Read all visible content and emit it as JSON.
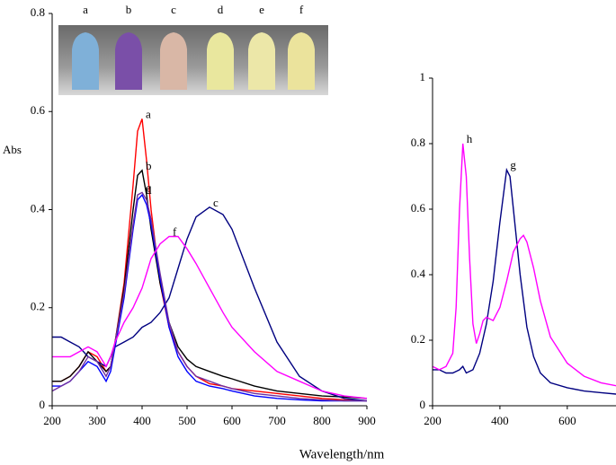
{
  "chart_data": [
    {
      "type": "line",
      "y_label": "Abs",
      "x_label": "Wavelength/nm",
      "xlim": [
        200,
        900
      ],
      "xticks": [
        200,
        300,
        400,
        500,
        600,
        700,
        800,
        900
      ],
      "ylim": [
        0,
        0.8
      ],
      "yticks": [
        0,
        0.2,
        0.4,
        0.6,
        0.8
      ],
      "x": [
        200,
        220,
        240,
        260,
        280,
        300,
        320,
        330,
        340,
        360,
        380,
        390,
        400,
        410,
        420,
        440,
        460,
        480,
        500,
        520,
        550,
        580,
        600,
        650,
        700,
        750,
        800,
        850,
        900
      ],
      "series": [
        {
          "name": "a",
          "color": "#ff0000",
          "values": [
            0.05,
            0.05,
            0.06,
            0.08,
            0.11,
            0.1,
            0.07,
            0.08,
            0.13,
            0.25,
            0.45,
            0.56,
            0.585,
            0.5,
            0.4,
            0.25,
            0.16,
            0.11,
            0.08,
            0.06,
            0.045,
            0.04,
            0.035,
            0.03,
            0.025,
            0.02,
            0.015,
            0.012,
            0.01
          ]
        },
        {
          "name": "b",
          "color": "#000000",
          "values": [
            0.05,
            0.05,
            0.06,
            0.08,
            0.11,
            0.09,
            0.07,
            0.08,
            0.13,
            0.24,
            0.4,
            0.47,
            0.48,
            0.43,
            0.36,
            0.25,
            0.17,
            0.12,
            0.095,
            0.08,
            0.07,
            0.06,
            0.055,
            0.04,
            0.03,
            0.025,
            0.02,
            0.018,
            0.015
          ]
        },
        {
          "name": "c",
          "color": "#000080",
          "values": [
            0.14,
            0.14,
            0.13,
            0.12,
            0.1,
            0.09,
            0.08,
            0.1,
            0.12,
            0.13,
            0.14,
            0.15,
            0.16,
            0.165,
            0.17,
            0.19,
            0.22,
            0.28,
            0.34,
            0.385,
            0.405,
            0.39,
            0.36,
            0.24,
            0.13,
            0.06,
            0.03,
            0.015,
            0.01
          ]
        },
        {
          "name": "d",
          "color": "#0000ff",
          "values": [
            0.04,
            0.04,
            0.05,
            0.07,
            0.09,
            0.08,
            0.05,
            0.07,
            0.12,
            0.22,
            0.36,
            0.42,
            0.43,
            0.41,
            0.37,
            0.26,
            0.16,
            0.1,
            0.07,
            0.05,
            0.04,
            0.035,
            0.03,
            0.02,
            0.015,
            0.012,
            0.01,
            0.01,
            0.01
          ]
        },
        {
          "name": "e",
          "color": "#7030a0",
          "values": [
            0.03,
            0.04,
            0.05,
            0.07,
            0.1,
            0.09,
            0.06,
            0.08,
            0.13,
            0.23,
            0.37,
            0.43,
            0.435,
            0.42,
            0.38,
            0.27,
            0.17,
            0.11,
            0.08,
            0.06,
            0.05,
            0.04,
            0.035,
            0.025,
            0.02,
            0.015,
            0.012,
            0.01,
            0.01
          ]
        },
        {
          "name": "f",
          "color": "#ff00ff",
          "values": [
            0.1,
            0.1,
            0.1,
            0.11,
            0.12,
            0.11,
            0.08,
            0.1,
            0.13,
            0.17,
            0.2,
            0.22,
            0.24,
            0.27,
            0.3,
            0.33,
            0.345,
            0.345,
            0.32,
            0.29,
            0.24,
            0.19,
            0.16,
            0.11,
            0.07,
            0.05,
            0.03,
            0.02,
            0.015
          ]
        }
      ]
    },
    {
      "type": "line",
      "xlim": [
        200,
        750
      ],
      "xticks": [
        200,
        400,
        600
      ],
      "ylim": [
        0,
        1
      ],
      "yticks": [
        0,
        0.2,
        0.4,
        0.6,
        0.8,
        1
      ],
      "series": [
        {
          "name": "g",
          "color": "#000080",
          "x": [
            200,
            220,
            240,
            260,
            280,
            290,
            300,
            320,
            340,
            360,
            380,
            400,
            420,
            430,
            440,
            460,
            480,
            500,
            520,
            550,
            600,
            650,
            700,
            750
          ],
          "values": [
            0.11,
            0.11,
            0.1,
            0.1,
            0.11,
            0.12,
            0.1,
            0.11,
            0.16,
            0.25,
            0.38,
            0.56,
            0.72,
            0.7,
            0.6,
            0.4,
            0.24,
            0.15,
            0.1,
            0.07,
            0.055,
            0.045,
            0.04,
            0.035
          ]
        },
        {
          "name": "h",
          "color": "#ff00ff",
          "x": [
            200,
            220,
            240,
            260,
            270,
            280,
            290,
            300,
            310,
            320,
            330,
            340,
            350,
            360,
            380,
            400,
            420,
            440,
            460,
            470,
            480,
            500,
            520,
            550,
            600,
            650,
            700,
            750
          ],
          "values": [
            0.12,
            0.11,
            0.12,
            0.16,
            0.3,
            0.6,
            0.8,
            0.7,
            0.45,
            0.25,
            0.19,
            0.22,
            0.26,
            0.27,
            0.26,
            0.3,
            0.38,
            0.47,
            0.51,
            0.52,
            0.5,
            0.42,
            0.32,
            0.21,
            0.13,
            0.09,
            0.07,
            0.06
          ]
        }
      ]
    }
  ]
}
